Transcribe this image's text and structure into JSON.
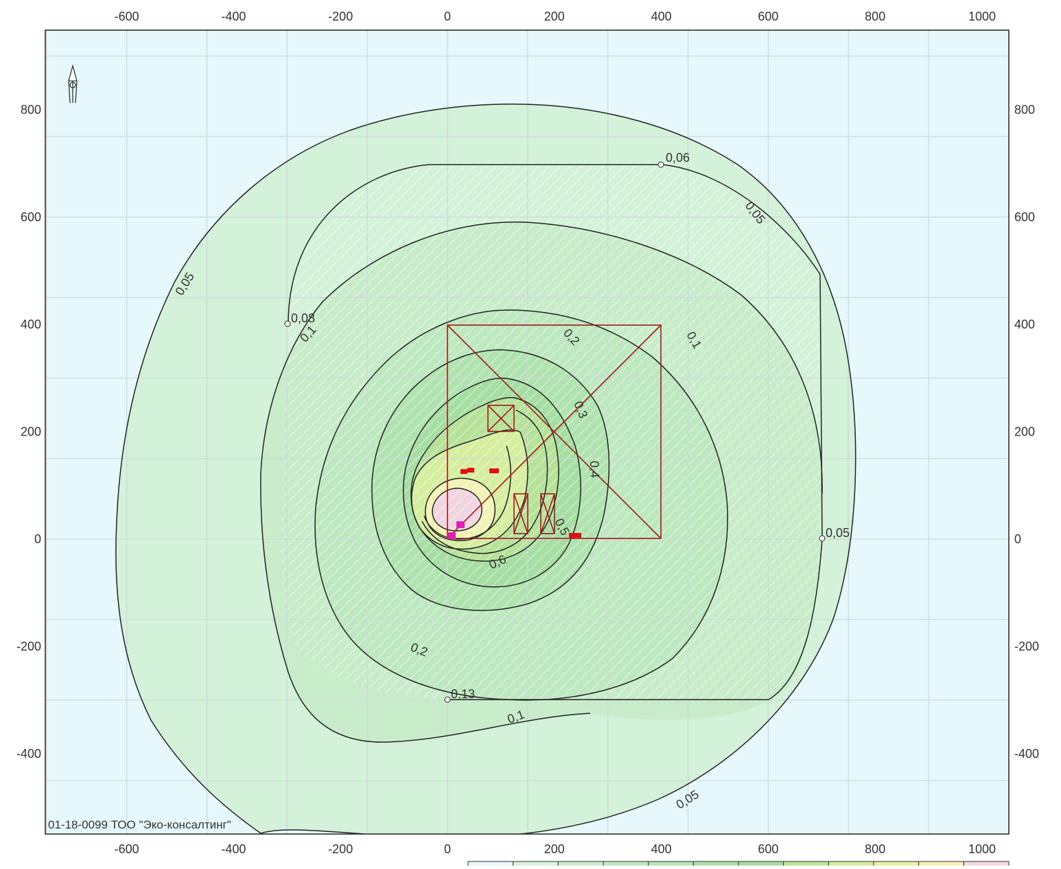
{
  "map": {
    "x_ticks": [
      "-600",
      "-400",
      "-200",
      "0",
      "200",
      "400",
      "600",
      "800",
      "1000"
    ],
    "y_ticks": [
      "800",
      "600",
      "400",
      "200",
      "0",
      "-200",
      "-400"
    ],
    "contour_labels": [
      "0,06",
      "0,05",
      "0,05",
      "0,08",
      "0,1",
      "0,2",
      "0,1",
      "0,3",
      "0,4",
      "0,5",
      "0,6",
      "0,2",
      "0,13",
      "0,1",
      "0,05",
      "0,05"
    ],
    "credit": "01-18-0099 ТОО \"Эко-консалтинг\"",
    "colors": {
      "background": "#e6f8fb",
      "zone_outer": "#d4f1da",
      "zone_2": "#c7ecc7",
      "zone_3": "#bde7bb",
      "zone_4": "#afe2aa",
      "zone_5": "#c3e79f",
      "zone_6": "#dff0a4",
      "zone_7": "#f3f3b7",
      "zone_peak": "#f1d6e2",
      "contour_line": "#222222",
      "site_outline": "#a01818",
      "source_marker": "#e01010",
      "hatch": "#ffffff"
    },
    "legend_swatches": [
      "#e6f8fb",
      "#d9f3de",
      "#cdeecf",
      "#c1e9c1",
      "#b6e5b4",
      "#abe0a8",
      "#a8dd9c",
      "#bde59c",
      "#d3ec9f",
      "#eaf0a6",
      "#f7efb9",
      "#f3d9e2"
    ],
    "north_icon": "north-arrow-icon"
  }
}
